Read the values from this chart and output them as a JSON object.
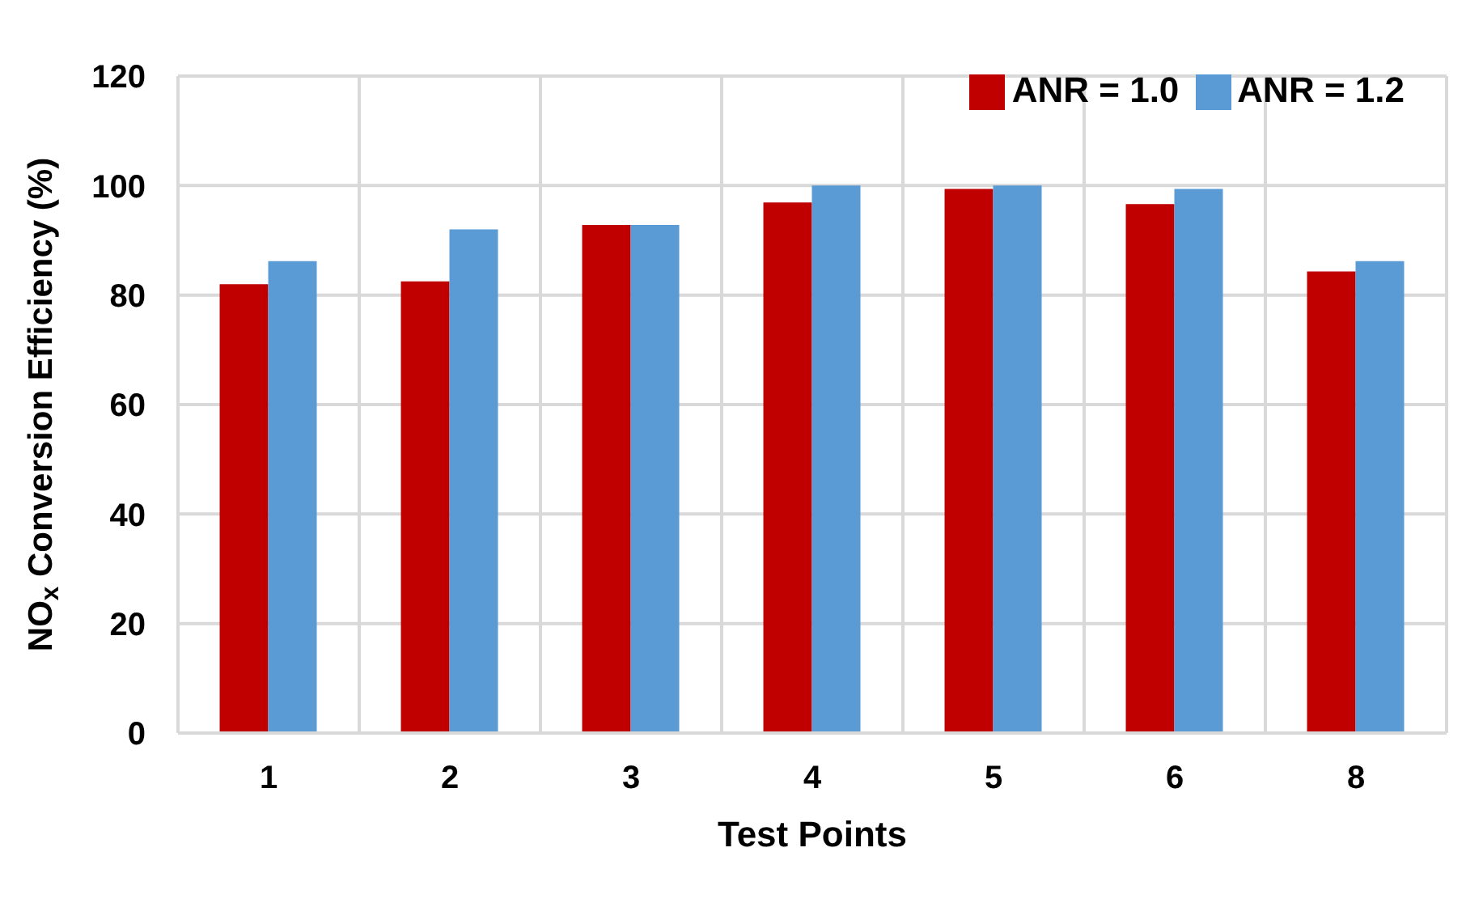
{
  "chart_data": {
    "type": "bar",
    "xlabel": "Test Points",
    "ylabel": "NO$_{x}$ Conversion Efficiency (%)",
    "categories": [
      "1",
      "2",
      "3",
      "4",
      "5",
      "6",
      "8"
    ],
    "series": [
      {
        "name": "ANR = 1.0",
        "color": "#c00000",
        "values": [
          82.0,
          82.5,
          92.8,
          96.9,
          99.4,
          96.6,
          84.3
        ]
      },
      {
        "name": "ANR = 1.2",
        "color": "#5b9bd5",
        "values": [
          86.2,
          92.0,
          92.8,
          100,
          100,
          99.4,
          86.2
        ]
      }
    ],
    "ylim": [
      0,
      120
    ],
    "yticks": [
      0,
      20,
      40,
      60,
      80,
      100,
      120
    ],
    "grid": true,
    "legend": "top right"
  }
}
